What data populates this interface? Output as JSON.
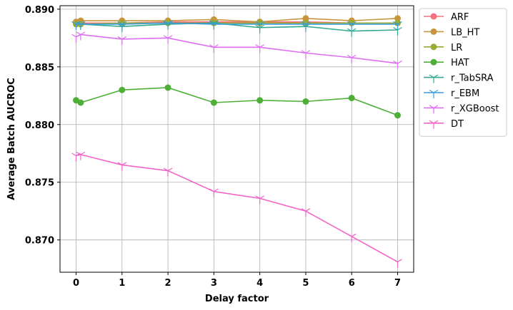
{
  "chart_data": {
    "type": "line",
    "title": "",
    "xlabel": "Delay factor",
    "ylabel": "Average Batch AUCROC",
    "xlim": [
      -0.35,
      7.35
    ],
    "ylim": [
      0.8672,
      0.8903
    ],
    "xticks": [
      "0",
      "1",
      "2",
      "3",
      "4",
      "5",
      "6",
      "7"
    ],
    "yticks": [
      "0.870",
      "0.875",
      "0.880",
      "0.885",
      "0.890"
    ],
    "grid": true,
    "legend_position": "outside-right",
    "series": [
      {
        "name": "ARF",
        "color": "#f5707d",
        "marker": "circle",
        "x": [
          0,
          0.1,
          1,
          2,
          3,
          4,
          5,
          6,
          7
        ],
        "y": [
          0.8888,
          0.8888,
          0.8888,
          0.8889,
          0.8889,
          0.8889,
          0.8889,
          0.8888,
          0.8888
        ]
      },
      {
        "name": "LB_HT",
        "color": "#c7963c",
        "marker": "circle",
        "x": [
          0,
          0.1,
          1,
          2,
          3,
          4,
          5,
          6,
          7
        ],
        "y": [
          0.8889,
          0.889,
          0.889,
          0.889,
          0.8891,
          0.8889,
          0.8892,
          0.889,
          0.8892
        ]
      },
      {
        "name": "LR",
        "color": "#9aab35",
        "marker": "circle",
        "x": [
          0,
          0.1,
          1,
          2,
          3,
          4,
          5,
          6,
          7
        ],
        "y": [
          0.8887,
          0.8887,
          0.8888,
          0.8888,
          0.8888,
          0.8888,
          0.8888,
          0.8888,
          0.8888
        ]
      },
      {
        "name": "HAT",
        "color": "#4daf38",
        "marker": "circle",
        "x": [
          0,
          0.1,
          1,
          2,
          3,
          4,
          5,
          6,
          7
        ],
        "y": [
          0.8821,
          0.8819,
          0.883,
          0.8832,
          0.8819,
          0.8821,
          0.882,
          0.8823,
          0.8808
        ]
      },
      {
        "name": "r_TabSRA",
        "color": "#33a890",
        "marker": "tri_down",
        "x": [
          0,
          0.1,
          1,
          2,
          3,
          4,
          5,
          6,
          7
        ],
        "y": [
          0.8887,
          0.8887,
          0.8885,
          0.8887,
          0.8888,
          0.8884,
          0.8885,
          0.8881,
          0.8882
        ]
      },
      {
        "name": "r_EBM",
        "color": "#3a9dd6",
        "marker": "tri_down",
        "x": [
          0,
          0.1,
          1,
          2,
          3,
          4,
          5,
          6,
          7
        ],
        "y": [
          0.8887,
          0.8887,
          0.8887,
          0.8888,
          0.8887,
          0.8887,
          0.8887,
          0.8887,
          0.8887
        ]
      },
      {
        "name": "r_XGBoost",
        "color": "#de6ef2",
        "marker": "tri_down",
        "x": [
          0,
          0.1,
          1,
          2,
          3,
          4,
          5,
          6,
          7
        ],
        "y": [
          0.8876,
          0.8878,
          0.8874,
          0.8875,
          0.8867,
          0.8867,
          0.8862,
          0.8858,
          0.8853
        ]
      },
      {
        "name": "DT",
        "color": "#f264c8",
        "marker": "tri_down",
        "x": [
          0,
          0.1,
          1,
          2,
          3,
          4,
          5,
          6,
          7
        ],
        "y": [
          0.8773,
          0.8774,
          0.8765,
          0.876,
          0.8742,
          0.8736,
          0.8725,
          0.8703,
          0.8681
        ]
      }
    ]
  }
}
